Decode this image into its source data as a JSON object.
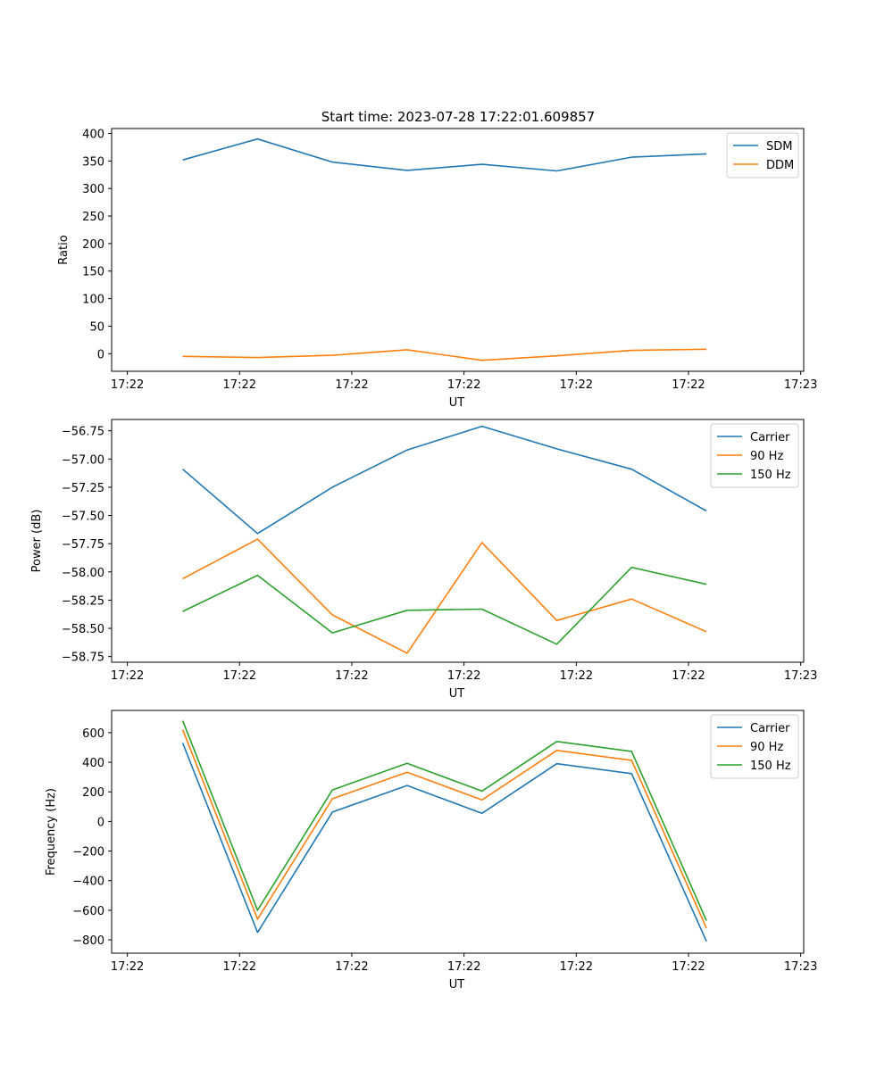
{
  "title": "Start time: 2023-07-28 17:22:01.609857",
  "colors": {
    "c0": "#1f77b4",
    "c1": "#ff7f0e",
    "c2": "#2ca02c"
  },
  "chart_data": [
    {
      "type": "line",
      "xlabel": "UT",
      "ylabel": "Ratio",
      "xlim": [
        0.45,
        9.7
      ],
      "ylim": [
        -32,
        409
      ],
      "x": [
        1.4,
        2.4,
        3.4,
        4.4,
        5.4,
        6.4,
        7.4,
        8.4
      ],
      "x_ticks": [
        0.66,
        2.16,
        3.66,
        5.16,
        6.66,
        8.16,
        9.66
      ],
      "x_tick_labels": [
        "17:22",
        "17:22",
        "17:22",
        "17:22",
        "17:22",
        "17:22",
        "17:23"
      ],
      "y_ticks": [
        0,
        50,
        100,
        150,
        200,
        250,
        300,
        350,
        400
      ],
      "y_tick_labels": [
        "0",
        "50",
        "100",
        "150",
        "200",
        "250",
        "300",
        "350",
        "400"
      ],
      "legend_position": "top-right",
      "series": [
        {
          "name": "SDM",
          "color": "#1f77b4",
          "values": [
            352,
            390,
            348,
            333,
            344,
            332,
            357,
            363
          ]
        },
        {
          "name": "DDM",
          "color": "#ff7f0e",
          "values": [
            -5,
            -7,
            -3,
            7,
            -12,
            -4,
            6,
            8
          ]
        }
      ]
    },
    {
      "type": "line",
      "xlabel": "UT",
      "ylabel": "Power (dB)",
      "xlim": [
        0.45,
        9.7
      ],
      "ylim": [
        -58.8,
        -56.65
      ],
      "x": [
        1.4,
        2.4,
        3.4,
        4.4,
        5.4,
        6.4,
        7.4,
        8.4
      ],
      "x_ticks": [
        0.66,
        2.16,
        3.66,
        5.16,
        6.66,
        8.16,
        9.66
      ],
      "x_tick_labels": [
        "17:22",
        "17:22",
        "17:22",
        "17:22",
        "17:22",
        "17:22",
        "17:23"
      ],
      "y_ticks": [
        -58.75,
        -58.5,
        -58.25,
        -58.0,
        -57.75,
        -57.5,
        -57.25,
        -57.0,
        -56.75
      ],
      "y_tick_labels": [
        "−58.75",
        "−58.50",
        "−58.25",
        "−58.00",
        "−57.75",
        "−57.50",
        "−57.25",
        "−57.00",
        "−56.75"
      ],
      "legend_position": "top-right",
      "series": [
        {
          "name": "Carrier",
          "color": "#1f77b4",
          "values": [
            -57.09,
            -57.66,
            -57.25,
            -56.92,
            -56.71,
            -56.91,
            -57.09,
            -57.46
          ]
        },
        {
          "name": "90 Hz",
          "color": "#ff7f0e",
          "values": [
            -58.06,
            -57.71,
            -58.38,
            -58.72,
            -57.74,
            -58.43,
            -58.24,
            -58.53
          ]
        },
        {
          "name": "150 Hz",
          "color": "#2ca02c",
          "values": [
            -58.35,
            -58.03,
            -58.54,
            -58.34,
            -58.33,
            -58.64,
            -57.96,
            -58.11
          ]
        }
      ]
    },
    {
      "type": "line",
      "xlabel": "UT",
      "ylabel": "Frequency (Hz)",
      "xlim": [
        0.45,
        9.7
      ],
      "ylim": [
        -890,
        750
      ],
      "x": [
        1.4,
        2.4,
        3.4,
        4.4,
        5.4,
        6.4,
        7.4,
        8.4
      ],
      "x_ticks": [
        0.66,
        2.16,
        3.66,
        5.16,
        6.66,
        8.16,
        9.66
      ],
      "x_tick_labels": [
        "17:22",
        "17:22",
        "17:22",
        "17:22",
        "17:22",
        "17:22",
        "17:23"
      ],
      "y_ticks": [
        -800,
        -600,
        -400,
        -200,
        0,
        200,
        400,
        600
      ],
      "y_tick_labels": [
        "−800",
        "−600",
        "−400",
        "−200",
        "0",
        "200",
        "400",
        "600"
      ],
      "legend_position": "top-right",
      "series": [
        {
          "name": "Carrier",
          "color": "#1f77b4",
          "values": [
            530,
            -750,
            63,
            243,
            55,
            390,
            323,
            -810
          ]
        },
        {
          "name": "90 Hz",
          "color": "#ff7f0e",
          "values": [
            620,
            -660,
            153,
            333,
            145,
            480,
            413,
            -720
          ]
        },
        {
          "name": "150 Hz",
          "color": "#2ca02c",
          "values": [
            680,
            -600,
            213,
            393,
            205,
            540,
            473,
            -670
          ]
        }
      ]
    }
  ]
}
